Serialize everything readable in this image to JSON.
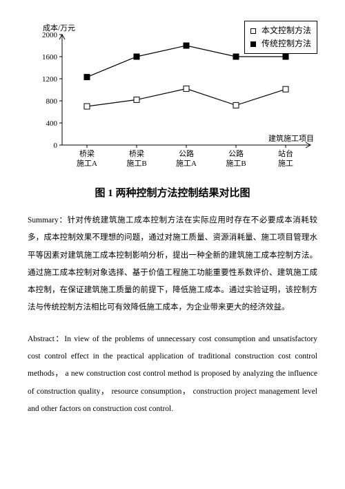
{
  "chart": {
    "type": "line",
    "y_label": "成本/万元",
    "x_label": "建筑施工项目",
    "ylim": [
      0,
      2000
    ],
    "ytick_step": 400,
    "yticks": [
      "0",
      "400",
      "800",
      "1200",
      "1600",
      "2000"
    ],
    "categories": [
      {
        "line1": "桥梁",
        "line2": "施工A"
      },
      {
        "line1": "桥梁",
        "line2": "施工B"
      },
      {
        "line1": "公路",
        "line2": "施工A"
      },
      {
        "line1": "公路",
        "line2": "施工B"
      },
      {
        "line1": "站台",
        "line2": "施工"
      }
    ],
    "series": [
      {
        "name": "本文控制方法",
        "marker": "square-open",
        "color": "#000000",
        "values": [
          700,
          820,
          1020,
          720,
          1010
        ]
      },
      {
        "name": "传统控制方法",
        "marker": "square-filled",
        "color": "#000000",
        "values": [
          1230,
          1600,
          1800,
          1600,
          1600
        ]
      }
    ],
    "axis_color": "#000000",
    "tick_fontsize": 11,
    "label_fontsize": 11
  },
  "figure_title": "图 1  两种控制方法控制结果对比图",
  "summary_label": "Summary：",
  "summary_text": "针对传统建筑施工成本控制方法在实际应用时存在不必要成本消耗较多，成本控制效果不理想的问题，通过对施工质量、资源消耗量、施工项目管理水平等因素对建筑施工成本控制影响分析，提出一种全新的建筑施工成本控制方法。通过施工成本控制对象选择、基于价值工程施工功能重要性系数评价、建筑施工成本控制，在保证建筑施工质量的前提下，降低施工成本。通过实验证明，该控制方法与传统控制方法相比可有效降低施工成本，为企业带来更大的经济效益。",
  "abstract_label": "Abstract：",
  "abstract_text": "In view of the problems of unnecessary cost consumption and unsatisfactory cost control effect in the practical application of traditional construction cost control methods， a new construction cost control method is proposed by analyzing the influence of construction quality， resource consumption， construction project management level and other factors on construction cost control."
}
